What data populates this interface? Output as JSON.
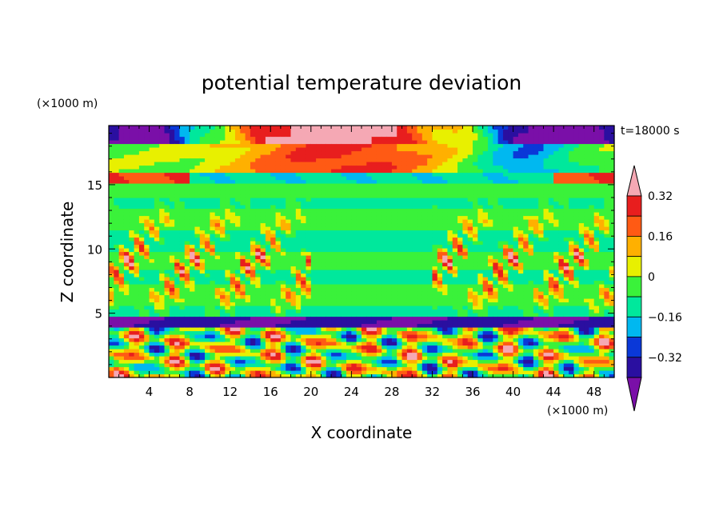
{
  "chart_data": {
    "type": "heatmap",
    "title": "potential temperature deviation",
    "xlabel": "X coordinate",
    "ylabel": "Z coordinate",
    "x_unit": "(×1000 m)",
    "y_unit": "(×1000 m)",
    "time_label": "t=18000 s",
    "xlim": [
      0,
      50
    ],
    "ylim": [
      0,
      19.6
    ],
    "x_ticks": [
      4,
      8,
      12,
      16,
      20,
      24,
      28,
      32,
      36,
      40,
      44,
      48
    ],
    "y_ticks": [
      5,
      10,
      15
    ],
    "colorbar": {
      "levels": [
        -0.4,
        -0.32,
        -0.24,
        -0.16,
        -0.08,
        0,
        0.08,
        0.16,
        0.24,
        0.32,
        0.4
      ],
      "tick_values": [
        -0.32,
        -0.16,
        0,
        0.16,
        0.32
      ],
      "tick_labels": [
        "−0.32",
        "−0.16",
        "0",
        "0.16",
        "0.32"
      ],
      "colors": [
        "#7a0fa8",
        "#2a0fa0",
        "#0a38d8",
        "#00b8f0",
        "#00e89c",
        "#3af23a",
        "#e8f000",
        "#ffb000",
        "#ff5a14",
        "#e81e1e",
        "#f5a8b4"
      ],
      "extend": "both"
    },
    "bands": [
      {
        "z": [
          18.2,
          19.6
        ],
        "note": "strong cold lobes near the lateral edges and warm maximum near x=22"
      },
      {
        "z": [
          16.0,
          18.2
        ],
        "note": "warm-to-neutral layer with cold tongues"
      },
      {
        "z": [
          15.0,
          16.0
        ],
        "note": "cold layer below warm anomaly"
      },
      {
        "z": [
          4.8,
          15.0
        ],
        "note": "weak cold to neutral with scattered warm filaments near z=6–13"
      },
      {
        "z": [
          3.8,
          4.8
        ],
        "note": "strongly cold inversion band"
      },
      {
        "z": [
          0,
          3.8
        ],
        "note": "boundary layer with mixed warm and cold turbulent eddies"
      }
    ]
  }
}
